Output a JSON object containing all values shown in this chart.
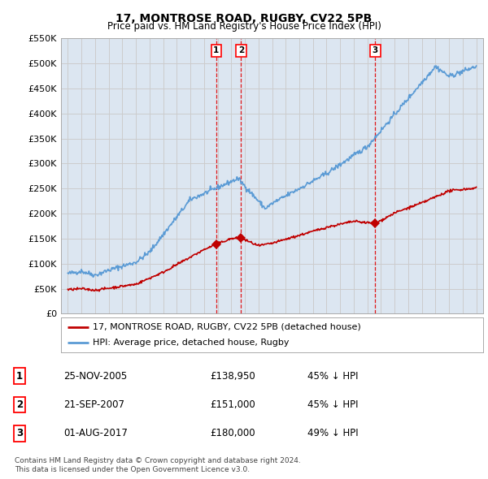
{
  "title": "17, MONTROSE ROAD, RUGBY, CV22 5PB",
  "subtitle": "Price paid vs. HM Land Registry's House Price Index (HPI)",
  "ylabel_ticks": [
    "£0",
    "£50K",
    "£100K",
    "£150K",
    "£200K",
    "£250K",
    "£300K",
    "£350K",
    "£400K",
    "£450K",
    "£500K",
    "£550K"
  ],
  "ylim": [
    0,
    550000
  ],
  "ytick_vals": [
    0,
    50000,
    100000,
    150000,
    200000,
    250000,
    300000,
    350000,
    400000,
    450000,
    500000,
    550000
  ],
  "xlim_start": 1994.5,
  "xlim_end": 2025.5,
  "transactions": [
    {
      "label": "1",
      "date": "25-NOV-2005",
      "price": 138950,
      "price_str": "£138,950",
      "pct": "45%",
      "x": 2005.9
    },
    {
      "label": "2",
      "date": "21-SEP-2007",
      "price": 151000,
      "price_str": "£151,000",
      "pct": "45%",
      "x": 2007.72
    },
    {
      "label": "3",
      "date": "01-AUG-2017",
      "price": 180000,
      "price_str": "£180,000",
      "pct": "49%",
      "x": 2017.58
    }
  ],
  "legend_line1": "17, MONTROSE ROAD, RUGBY, CV22 5PB (detached house)",
  "legend_line2": "HPI: Average price, detached house, Rugby",
  "footer1": "Contains HM Land Registry data © Crown copyright and database right 2024.",
  "footer2": "This data is licensed under the Open Government Licence v3.0.",
  "hpi_color": "#5b9bd5",
  "price_color": "#c00000",
  "vline_color": "#e00000",
  "marker_color": "#c00000",
  "background_color": "#ffffff",
  "grid_color": "#cccccc",
  "chart_bg": "#dce6f1"
}
